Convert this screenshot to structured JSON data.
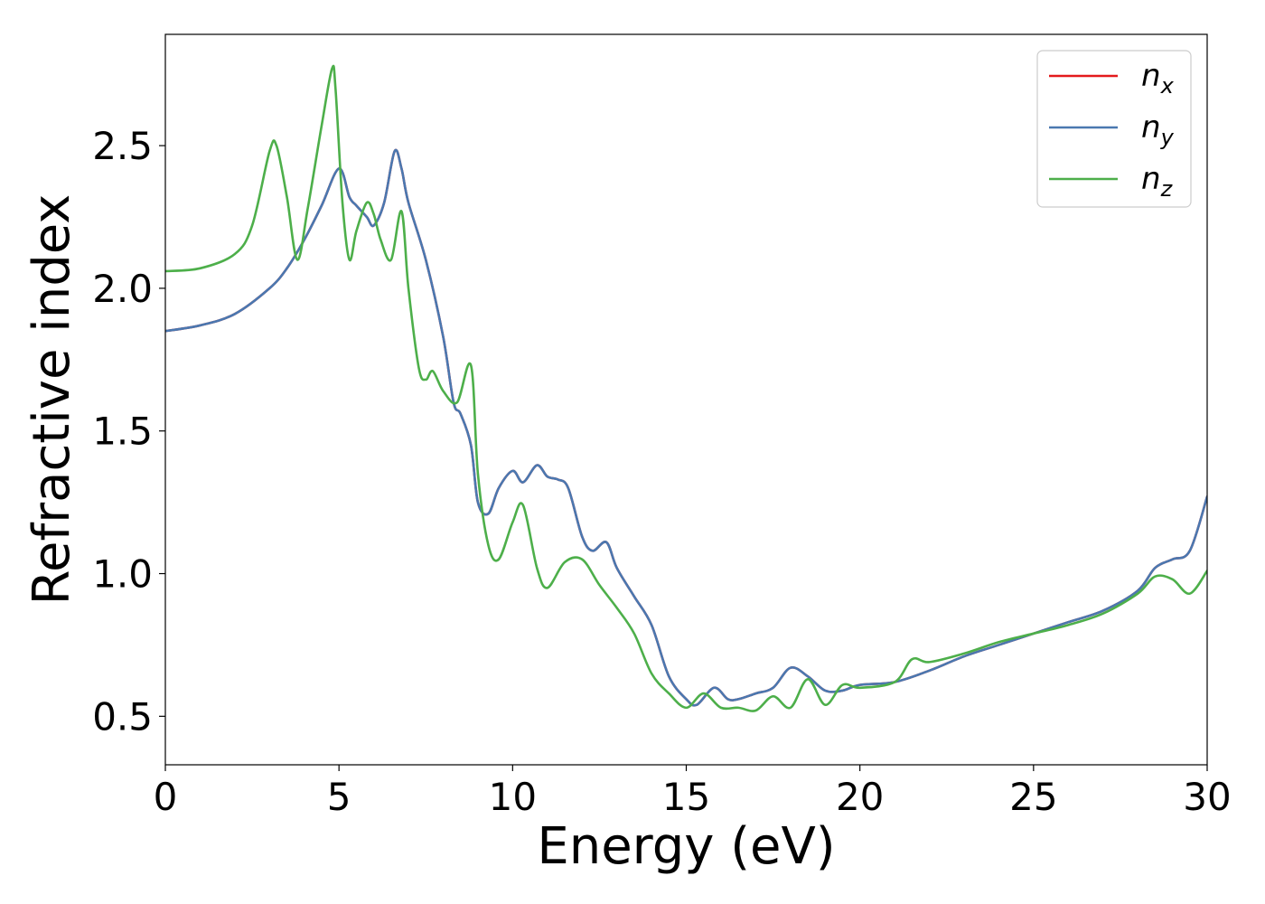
{
  "chart_data": {
    "type": "line",
    "xlabel": "Energy (eV)",
    "ylabel": "Refractive index",
    "xlim": [
      0,
      30
    ],
    "ylim": [
      0.33,
      2.89
    ],
    "x_ticks": [
      "0",
      "5",
      "10",
      "15",
      "20",
      "25",
      "30"
    ],
    "y_ticks": [
      "0.5",
      "1.0",
      "1.5",
      "2.0",
      "2.5"
    ],
    "grid": false,
    "legend_position": "top-right",
    "series": [
      {
        "name": "n_x",
        "label_base": "n",
        "label_sub": "x",
        "color": "#e41a1c",
        "x": [
          0,
          1,
          2,
          3,
          3.5,
          4,
          4.5,
          5,
          5.3,
          5.5,
          5.8,
          6,
          6.3,
          6.6,
          6.8,
          7,
          7.5,
          8,
          8.3,
          8.5,
          8.8,
          9,
          9.3,
          9.6,
          10,
          10.3,
          10.7,
          11,
          11.3,
          11.6,
          12,
          12.3,
          12.7,
          13,
          13.5,
          14,
          14.5,
          15,
          15.3,
          15.8,
          16.2,
          16.5,
          17,
          17.5,
          18,
          18.5,
          19,
          19.5,
          20,
          21,
          22,
          23,
          24,
          25,
          26,
          27,
          28,
          28.5,
          29,
          29.5,
          30
        ],
        "y": [
          1.85,
          1.87,
          1.91,
          2.0,
          2.07,
          2.17,
          2.29,
          2.42,
          2.32,
          2.29,
          2.25,
          2.22,
          2.3,
          2.48,
          2.42,
          2.3,
          2.1,
          1.83,
          1.6,
          1.56,
          1.45,
          1.25,
          1.21,
          1.3,
          1.36,
          1.32,
          1.38,
          1.34,
          1.33,
          1.3,
          1.13,
          1.08,
          1.11,
          1.02,
          0.92,
          0.82,
          0.64,
          0.56,
          0.54,
          0.6,
          0.56,
          0.56,
          0.58,
          0.6,
          0.67,
          0.64,
          0.59,
          0.59,
          0.61,
          0.62,
          0.66,
          0.71,
          0.75,
          0.79,
          0.83,
          0.87,
          0.94,
          1.02,
          1.05,
          1.08,
          1.27
        ]
      },
      {
        "name": "n_y",
        "label_base": "n",
        "label_sub": "y",
        "color": "#4a78b0",
        "x": [
          0,
          1,
          2,
          3,
          3.5,
          4,
          4.5,
          5,
          5.3,
          5.5,
          5.8,
          6,
          6.3,
          6.6,
          6.8,
          7,
          7.5,
          8,
          8.3,
          8.5,
          8.8,
          9,
          9.3,
          9.6,
          10,
          10.3,
          10.7,
          11,
          11.3,
          11.6,
          12,
          12.3,
          12.7,
          13,
          13.5,
          14,
          14.5,
          15,
          15.3,
          15.8,
          16.2,
          16.5,
          17,
          17.5,
          18,
          18.5,
          19,
          19.5,
          20,
          21,
          22,
          23,
          24,
          25,
          26,
          27,
          28,
          28.5,
          29,
          29.5,
          30
        ],
        "y": [
          1.85,
          1.87,
          1.91,
          2.0,
          2.07,
          2.17,
          2.29,
          2.42,
          2.32,
          2.29,
          2.25,
          2.22,
          2.3,
          2.48,
          2.42,
          2.3,
          2.1,
          1.83,
          1.6,
          1.56,
          1.45,
          1.25,
          1.21,
          1.3,
          1.36,
          1.32,
          1.38,
          1.34,
          1.33,
          1.3,
          1.13,
          1.08,
          1.11,
          1.02,
          0.92,
          0.82,
          0.64,
          0.56,
          0.54,
          0.6,
          0.56,
          0.56,
          0.58,
          0.6,
          0.67,
          0.64,
          0.59,
          0.59,
          0.61,
          0.62,
          0.66,
          0.71,
          0.75,
          0.79,
          0.83,
          0.87,
          0.94,
          1.02,
          1.05,
          1.08,
          1.27
        ]
      },
      {
        "name": "n_z",
        "label_base": "n",
        "label_sub": "z",
        "color": "#4daf4a",
        "x": [
          0,
          1,
          2,
          2.5,
          3,
          3.2,
          3.5,
          3.8,
          4.1,
          4.5,
          4.8,
          4.9,
          5.1,
          5.3,
          5.5,
          5.8,
          6,
          6.2,
          6.5,
          6.8,
          7,
          7.3,
          7.5,
          7.7,
          8,
          8.4,
          8.8,
          9,
          9.3,
          9.6,
          10,
          10.3,
          10.7,
          11,
          11.5,
          12,
          12.5,
          13,
          13.5,
          14,
          14.5,
          15,
          15.5,
          16,
          16.5,
          17,
          17.5,
          18,
          18.5,
          19,
          19.5,
          20,
          21,
          21.5,
          22,
          23,
          24,
          25,
          26,
          27,
          28,
          28.5,
          29,
          29.5,
          30
        ],
        "y": [
          2.06,
          2.07,
          2.12,
          2.22,
          2.48,
          2.5,
          2.32,
          2.1,
          2.28,
          2.57,
          2.77,
          2.7,
          2.3,
          2.1,
          2.2,
          2.3,
          2.26,
          2.17,
          2.1,
          2.27,
          2.0,
          1.72,
          1.68,
          1.71,
          1.64,
          1.6,
          1.73,
          1.35,
          1.1,
          1.05,
          1.18,
          1.24,
          1.02,
          0.95,
          1.04,
          1.05,
          0.96,
          0.88,
          0.79,
          0.65,
          0.58,
          0.53,
          0.58,
          0.53,
          0.53,
          0.52,
          0.57,
          0.53,
          0.63,
          0.54,
          0.61,
          0.6,
          0.62,
          0.7,
          0.69,
          0.72,
          0.76,
          0.79,
          0.82,
          0.86,
          0.93,
          0.99,
          0.98,
          0.93,
          1.01
        ]
      }
    ]
  }
}
